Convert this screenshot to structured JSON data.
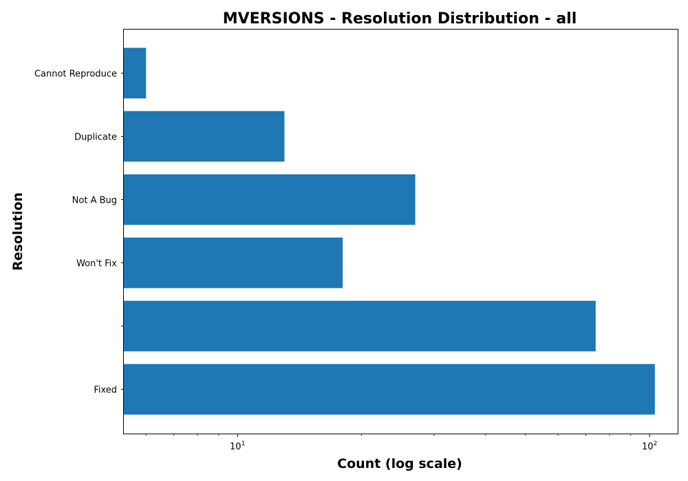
{
  "chart_data": {
    "type": "bar",
    "orientation": "horizontal",
    "title": "MVERSIONS - Resolution Distribution - all",
    "xlabel": "Count (log scale)",
    "ylabel": "Resolution",
    "xscale": "log",
    "xlim": [
      5.3,
      117
    ],
    "grid": false,
    "bar_color": "#1f77b4",
    "categories": [
      "Fixed",
      "",
      "Won't Fix",
      "Not A Bug",
      "Duplicate",
      "Cannot Reproduce"
    ],
    "values": [
      103,
      74,
      18,
      27,
      13,
      6
    ],
    "x_ticks": [
      {
        "value": 10,
        "base": "10",
        "exp": "1"
      },
      {
        "value": 100,
        "base": "10",
        "exp": "2"
      }
    ]
  }
}
